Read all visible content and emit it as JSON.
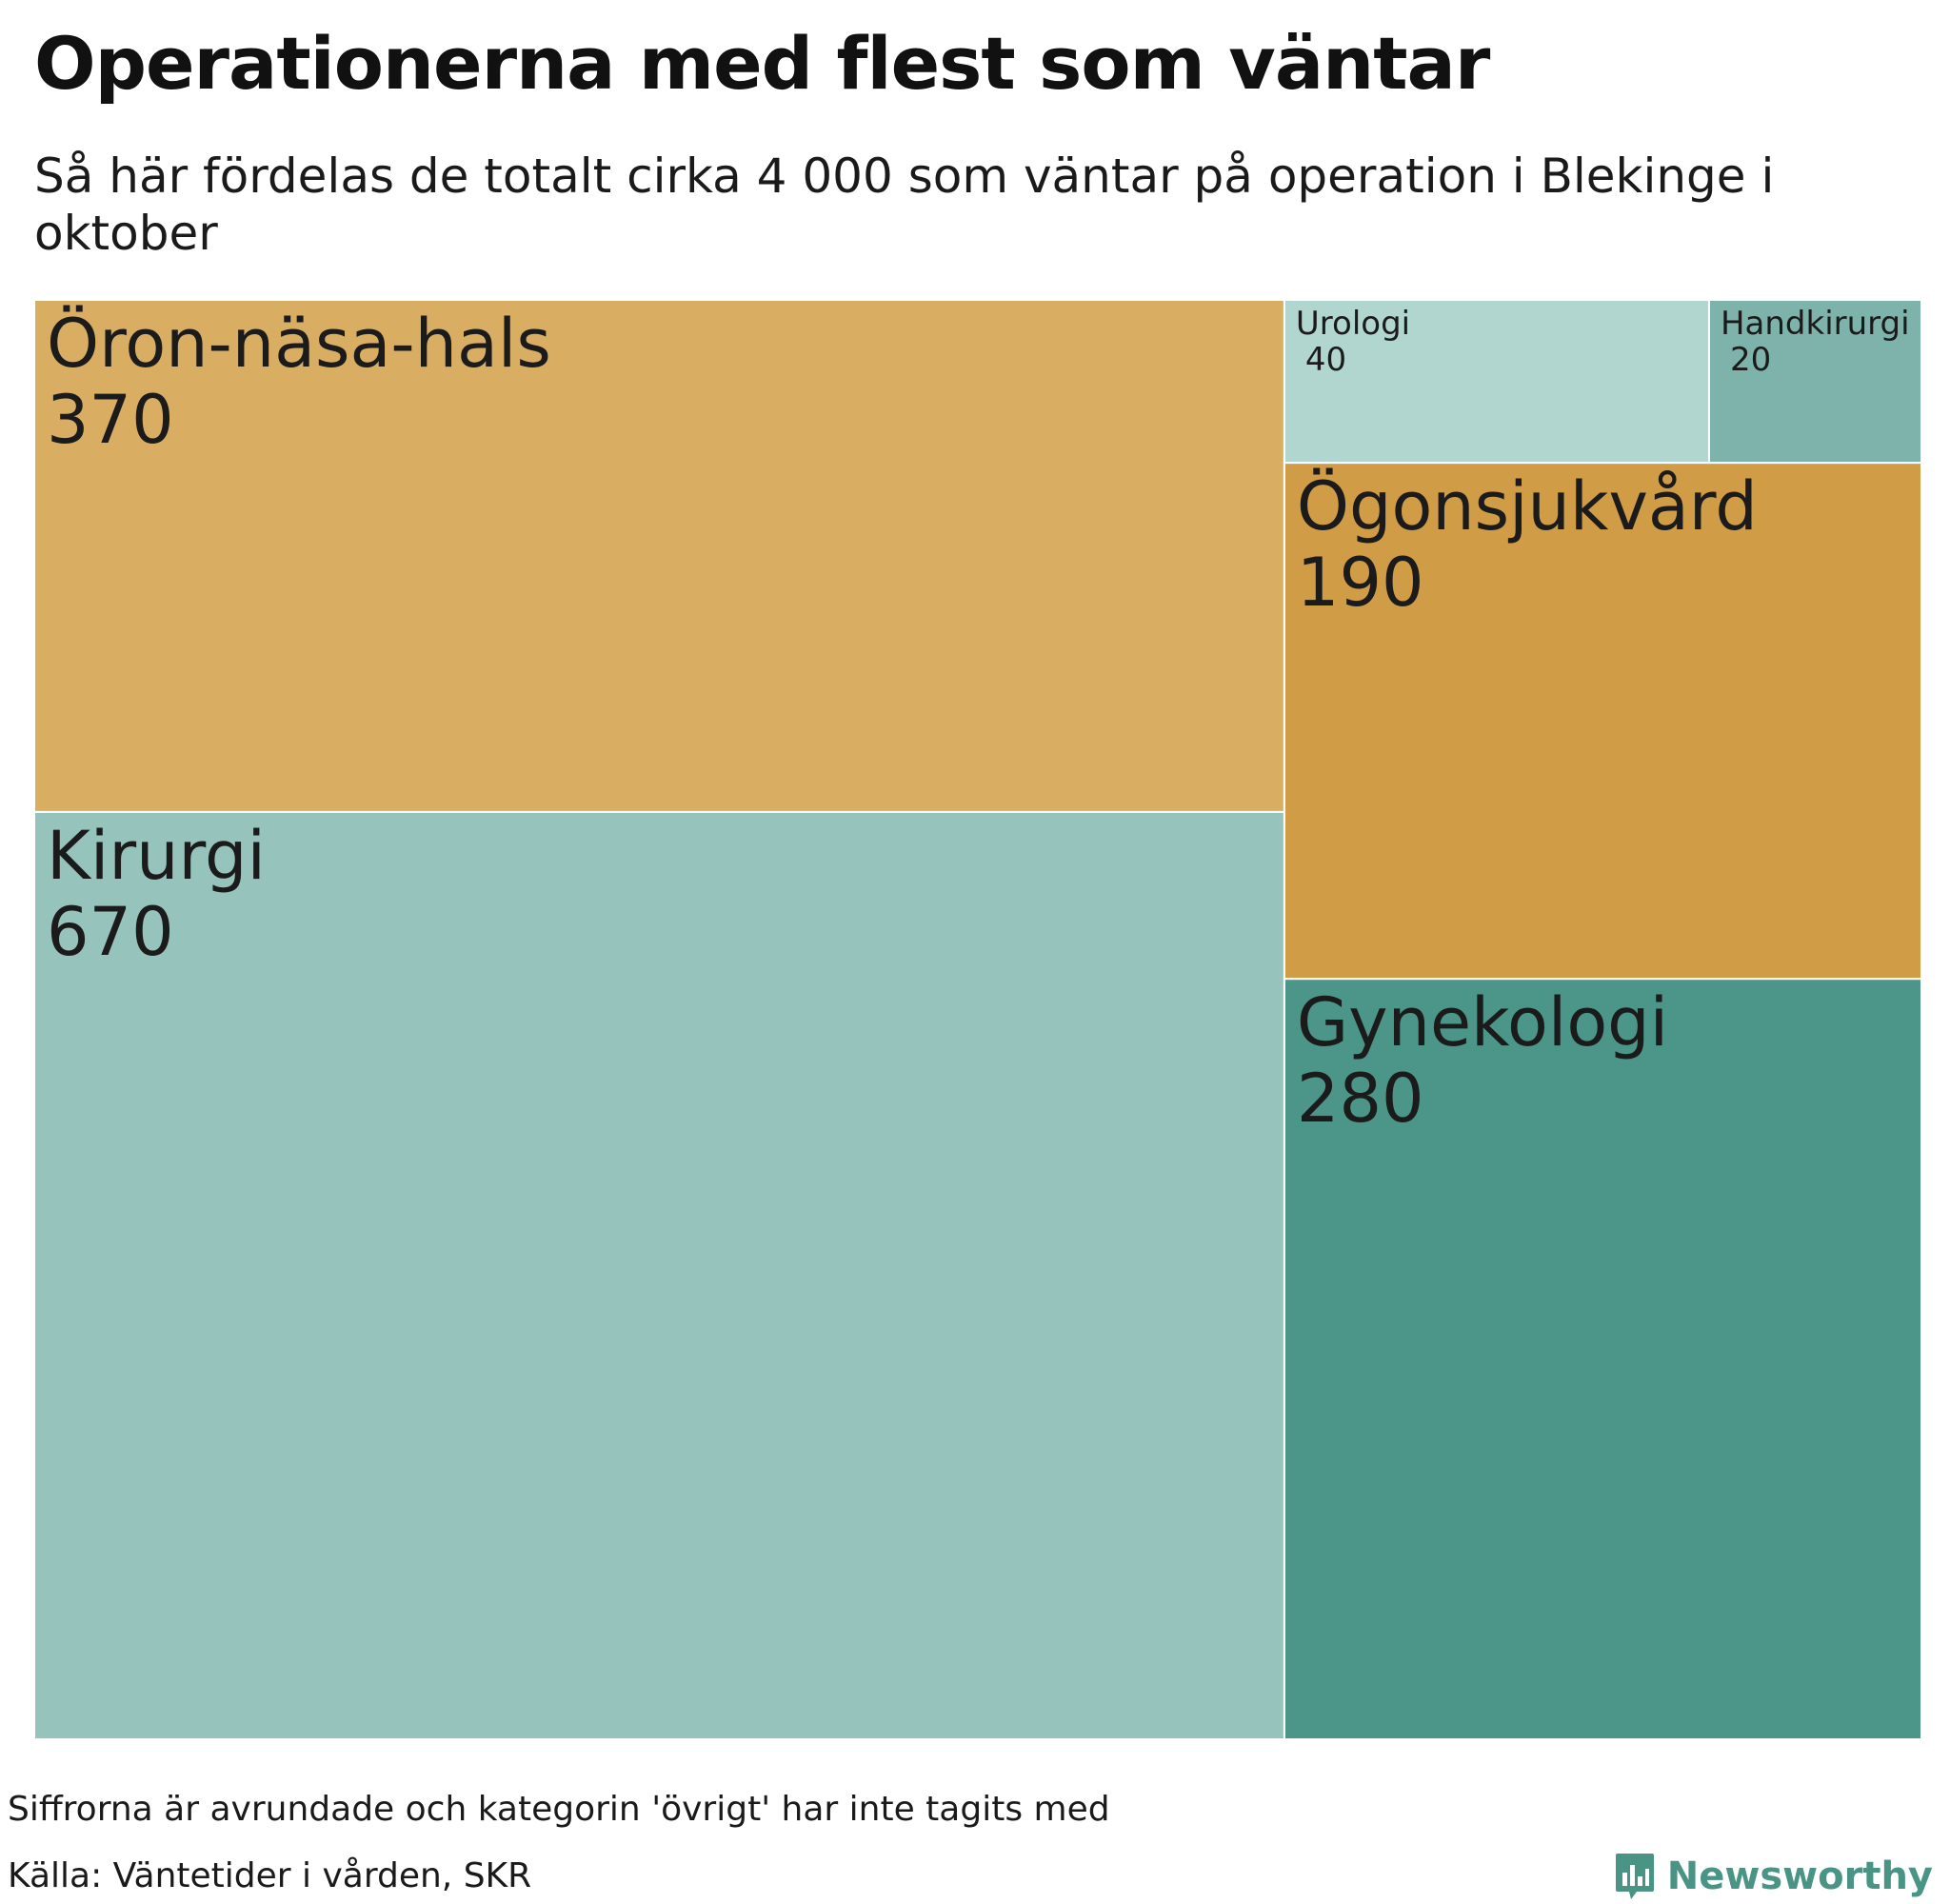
{
  "title": "Operationerna med flest som väntar",
  "subtitle": "Så här fördelas de totalt cirka 4 000 som väntar på operation i Blekinge i oktober",
  "chart_data": {
    "type": "treemap",
    "items": [
      {
        "name": "Öron-näsa-hals",
        "label": "370",
        "value": 370,
        "color": "#d9ae63"
      },
      {
        "name": "Kirurgi",
        "label": "670",
        "value": 670,
        "color": "#97c3bd"
      },
      {
        "name": "Urologi",
        "label": "40",
        "value": 40,
        "color": "#b1d6cf"
      },
      {
        "name": "Handkirurgi",
        "label": "20",
        "value": 20,
        "color": "#7db3ab"
      },
      {
        "name": "Ögonsjukvård",
        "label": "190",
        "value": 190,
        "color": "#d19c46"
      },
      {
        "name": "Gynekologi",
        "label": "280",
        "value": 280,
        "color": "#4b9688"
      }
    ]
  },
  "notes": {
    "rounding": "Siffrorna är avrundade och kategorin 'övrigt' har inte tagits med",
    "source": "Källa: Väntetider i vården, SKR"
  },
  "brand": {
    "name": "Newsworthy",
    "color": "#4a9486",
    "icon": "bar-chart-icon"
  }
}
